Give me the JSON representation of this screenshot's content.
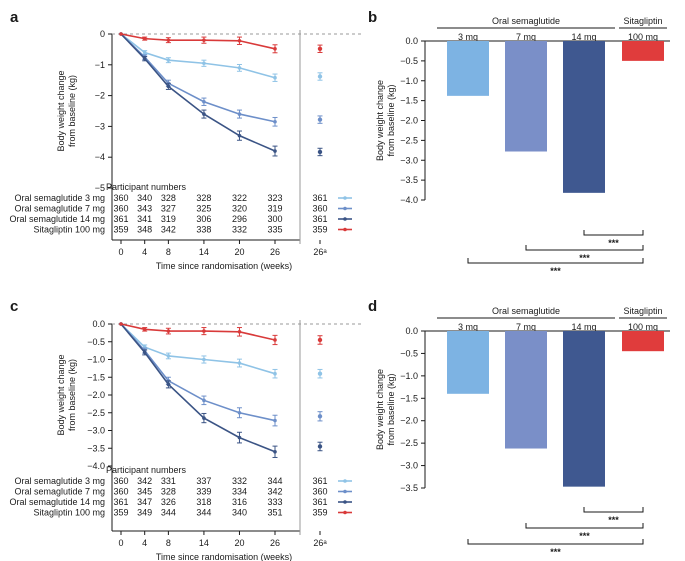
{
  "figure": {
    "colors": {
      "s3": "#8fc3e6",
      "s7": "#6d8fc9",
      "s14": "#3b5485",
      "sita": "#d93a3a",
      "bar3": "#7db3e3",
      "bar7": "#7a8fc8",
      "bar14": "#3f5890",
      "barSita": "#e03c3c",
      "axis": "#1a1a1a",
      "ref": "#999999"
    }
  },
  "chart_data": [
    {
      "panel": "a",
      "type": "line",
      "xlabel": "Time since randomisation (weeks)",
      "ylabel": "Body weight change from baseline (kg)",
      "ylabel_lines": [
        "Body weight change",
        "from baseline (kg)"
      ],
      "yticks": [
        0,
        -1,
        -2,
        -3,
        -4,
        -5
      ],
      "ytick_labels": [
        "0",
        "−1",
        "−2",
        "−3",
        "−4",
        "−5"
      ],
      "ylim": [
        -5,
        0
      ],
      "x": [
        0,
        4,
        8,
        14,
        20,
        26
      ],
      "xtick_labels": [
        "0",
        "4",
        "8",
        "14",
        "20",
        "26"
      ],
      "extra_xtick_label": "26ᵃ",
      "participant_header": "Participant numbers",
      "series": [
        {
          "key": "s3",
          "name": "Oral semaglutide 3 mg",
          "values": [
            0,
            -0.6,
            -0.85,
            -0.95,
            -1.1,
            -1.42
          ],
          "err": [
            0,
            0.06,
            0.08,
            0.1,
            0.11,
            0.12
          ],
          "extra": -1.38,
          "extra_err": 0.12,
          "numbers": [
            "360",
            "340",
            "328",
            "328",
            "322",
            "323"
          ],
          "extra_number": "361"
        },
        {
          "key": "s7",
          "name": "Oral semaglutide 7 mg",
          "values": [
            0,
            -0.75,
            -1.6,
            -2.2,
            -2.6,
            -2.85
          ],
          "err": [
            0,
            0.07,
            0.1,
            0.12,
            0.13,
            0.14
          ],
          "extra": -2.78,
          "extra_err": 0.12,
          "numbers": [
            "360",
            "343",
            "327",
            "325",
            "320",
            "319"
          ],
          "extra_number": "360"
        },
        {
          "key": "s14",
          "name": "Oral semaglutide 14 mg",
          "values": [
            0,
            -0.8,
            -1.7,
            -2.6,
            -3.3,
            -3.8
          ],
          "err": [
            0,
            0.07,
            0.1,
            0.13,
            0.15,
            0.16
          ],
          "extra": -3.83,
          "extra_err": 0.12,
          "numbers": [
            "361",
            "341",
            "319",
            "306",
            "296",
            "300"
          ],
          "extra_number": "361"
        },
        {
          "key": "sita",
          "name": "Sitagliptin 100 mg",
          "values": [
            0,
            -0.15,
            -0.2,
            -0.2,
            -0.22,
            -0.48
          ],
          "err": [
            0,
            0.05,
            0.08,
            0.1,
            0.12,
            0.13
          ],
          "extra": -0.48,
          "extra_err": 0.12,
          "numbers": [
            "359",
            "348",
            "342",
            "338",
            "332",
            "335"
          ],
          "extra_number": "359"
        }
      ]
    },
    {
      "panel": "b",
      "type": "bar",
      "group_label": "Oral semaglutide",
      "comparator_label": "Sitagliptin",
      "ylabel": "Body weight change from baseline (kg)",
      "ylabel_lines": [
        "Body weight change",
        "from baseline (kg)"
      ],
      "yticks": [
        0,
        -0.5,
        -1,
        -1.5,
        -2,
        -2.5,
        -3,
        -3.5,
        -4
      ],
      "ytick_labels": [
        "0.0",
        "−0.5",
        "−1.0",
        "−1.5",
        "−2.0",
        "−2.5",
        "−3.0",
        "−3.5",
        "−4.0"
      ],
      "ylim": [
        -4,
        0
      ],
      "categories": [
        "3 mg",
        "7 mg",
        "14 mg",
        "100 mg"
      ],
      "values": [
        -1.38,
        -2.78,
        -3.82,
        -0.5
      ],
      "bar_keys": [
        "bar3",
        "bar7",
        "bar14",
        "barSita"
      ],
      "significance": [
        {
          "from": 2,
          "to": 3,
          "label": "***"
        },
        {
          "from": 1,
          "to": 3,
          "label": "***"
        },
        {
          "from": 0,
          "to": 3,
          "label": "***"
        }
      ]
    },
    {
      "panel": "c",
      "type": "line",
      "xlabel": "Time since randomisation (weeks)",
      "ylabel": "Body weight change from baseline (kg)",
      "ylabel_lines": [
        "Body weight change",
        "from baseline (kg)"
      ],
      "yticks": [
        0,
        -0.5,
        -1,
        -1.5,
        -2,
        -2.5,
        -3,
        -3.5,
        -4
      ],
      "ytick_labels": [
        "0.0",
        "−0.5",
        "−1.0",
        "−1.5",
        "−2.0",
        "−2.5",
        "−3.0",
        "−3.5",
        "−4.0"
      ],
      "ylim": [
        -4,
        0
      ],
      "x": [
        0,
        4,
        8,
        14,
        20,
        26
      ],
      "xtick_labels": [
        "0",
        "4",
        "8",
        "14",
        "20",
        "26"
      ],
      "extra_xtick_label": "26ᵃ",
      "participant_header": "Participant numbers",
      "series": [
        {
          "key": "s3",
          "name": "Oral semaglutide 3 mg",
          "values": [
            0,
            -0.65,
            -0.9,
            -1.0,
            -1.1,
            -1.4
          ],
          "err": [
            0,
            0.06,
            0.08,
            0.1,
            0.11,
            0.12
          ],
          "extra": -1.4,
          "extra_err": 0.12,
          "numbers": [
            "360",
            "342",
            "331",
            "337",
            "332",
            "344"
          ],
          "extra_number": "361"
        },
        {
          "key": "s7",
          "name": "Oral semaglutide 7 mg",
          "values": [
            0,
            -0.75,
            -1.6,
            -2.15,
            -2.5,
            -2.72
          ],
          "err": [
            0,
            0.07,
            0.1,
            0.12,
            0.14,
            0.15
          ],
          "extra": -2.6,
          "extra_err": 0.13,
          "numbers": [
            "360",
            "345",
            "328",
            "339",
            "334",
            "342"
          ],
          "extra_number": "360"
        },
        {
          "key": "s14",
          "name": "Oral semaglutide 14 mg",
          "values": [
            0,
            -0.8,
            -1.7,
            -2.65,
            -3.2,
            -3.6
          ],
          "err": [
            0,
            0.07,
            0.1,
            0.13,
            0.15,
            0.16
          ],
          "extra": -3.45,
          "extra_err": 0.12,
          "numbers": [
            "361",
            "347",
            "326",
            "318",
            "316",
            "333"
          ],
          "extra_number": "361"
        },
        {
          "key": "sita",
          "name": "Sitagliptin 100 mg",
          "values": [
            0,
            -0.15,
            -0.2,
            -0.2,
            -0.22,
            -0.45
          ],
          "err": [
            0,
            0.05,
            0.08,
            0.1,
            0.12,
            0.13
          ],
          "extra": -0.45,
          "extra_err": 0.12,
          "numbers": [
            "359",
            "349",
            "344",
            "344",
            "340",
            "351"
          ],
          "extra_number": "359"
        }
      ]
    },
    {
      "panel": "d",
      "type": "bar",
      "group_label": "Oral semaglutide",
      "comparator_label": "Sitagliptin",
      "ylabel": "Body weight change from baseline (kg)",
      "ylabel_lines": [
        "Body weight change",
        "from baseline (kg)"
      ],
      "yticks": [
        0,
        -0.5,
        -1,
        -1.5,
        -2,
        -2.5,
        -3,
        -3.5
      ],
      "ytick_labels": [
        "0.0",
        "−0.5",
        "−1.0",
        "−1.5",
        "−2.0",
        "−2.5",
        "−3.0",
        "−3.5"
      ],
      "ylim": [
        -3.5,
        0
      ],
      "categories": [
        "3 mg",
        "7 mg",
        "14 mg",
        "100 mg"
      ],
      "values": [
        -1.4,
        -2.62,
        -3.47,
        -0.45
      ],
      "bar_keys": [
        "bar3",
        "bar7",
        "bar14",
        "barSita"
      ],
      "significance": [
        {
          "from": 2,
          "to": 3,
          "label": "***"
        },
        {
          "from": 1,
          "to": 3,
          "label": "***"
        },
        {
          "from": 0,
          "to": 3,
          "label": "***"
        }
      ]
    }
  ]
}
